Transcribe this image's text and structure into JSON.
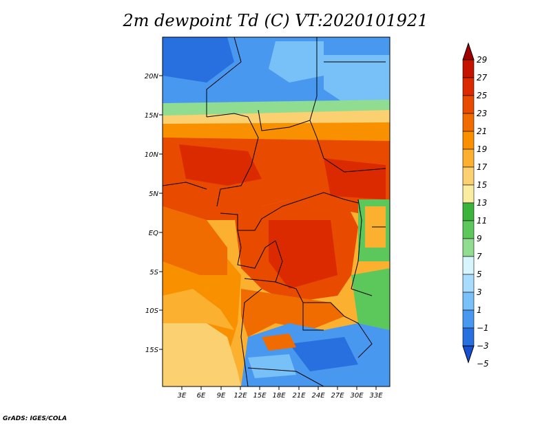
{
  "title": "2m dewpoint Td (C) VT:2020101921",
  "credit": "GrADS: IGES/COLA",
  "map": {
    "lat_ticks": [
      "20N",
      "15N",
      "10N",
      "5N",
      "EQ",
      "5S",
      "10S",
      "15S"
    ],
    "lon_ticks": [
      "3E",
      "6E",
      "9E",
      "12E",
      "15E",
      "18E",
      "21E",
      "24E",
      "27E",
      "30E",
      "33E"
    ]
  },
  "colorbar": {
    "labels": [
      "29",
      "27",
      "25",
      "23",
      "21",
      "19",
      "17",
      "15",
      "13",
      "11",
      "9",
      "7",
      "5",
      "3",
      "1",
      "−1",
      "−3",
      "−5"
    ],
    "colors": [
      "#a00000",
      "#c41400",
      "#dc2a00",
      "#e84a00",
      "#f06c00",
      "#f89000",
      "#fbb030",
      "#fbd070",
      "#fbeda0",
      "#3cb43c",
      "#5cc85c",
      "#90dc90",
      "#d8f4ff",
      "#a8dcff",
      "#78c0f8",
      "#4898f0",
      "#2870e0",
      "#1450d0"
    ]
  }
}
